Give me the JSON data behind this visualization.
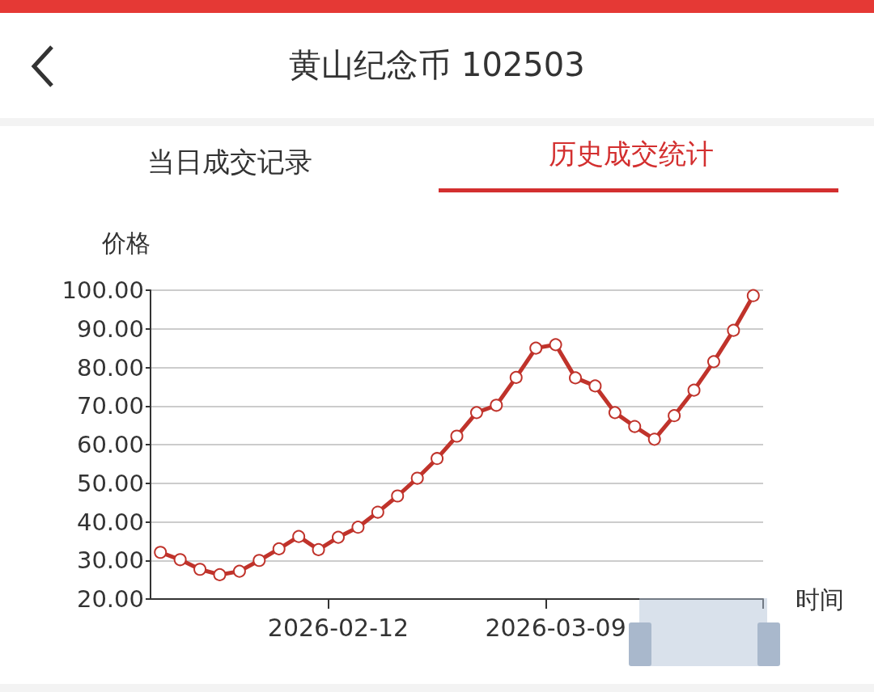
{
  "chart_data": {
    "type": "line",
    "title": "黄山纪念币 102503",
    "annotations": [
      "当日成交记录",
      "历史成交统计"
    ],
    "xlabel": "时间",
    "ylabel": "价格",
    "categories": [
      null,
      null,
      null,
      null,
      null,
      null,
      null,
      null,
      null,
      "2026-02-12",
      null,
      null,
      null,
      null,
      null,
      null,
      null,
      null,
      null,
      null,
      "2026-03-09",
      null,
      null,
      null,
      null,
      null,
      null,
      null,
      null,
      null,
      null
    ],
    "series": [
      {
        "color": "#c0332b",
        "values": [
          32.1,
          30.2,
          27.7,
          26.3,
          27.2,
          30.0,
          33.0,
          36.2,
          32.8,
          36.0,
          38.6,
          42.5,
          46.7,
          51.3,
          56.4,
          62.2,
          68.3,
          70.2,
          77.4,
          85.0,
          85.9,
          77.3,
          75.2,
          68.3,
          64.7,
          61.4,
          67.5,
          74.1,
          81.5,
          89.6,
          98.6
        ]
      }
    ],
    "ylim": [
      20,
      100
    ],
    "yticks": [
      {
        "value": 20,
        "label": "20.00"
      },
      {
        "value": 30,
        "label": "30.00"
      },
      {
        "value": 40,
        "label": "40.00"
      },
      {
        "value": 50,
        "label": "50.00"
      },
      {
        "value": 60,
        "label": "60.00"
      },
      {
        "value": 70,
        "label": "70.00"
      },
      {
        "value": 80,
        "label": "80.00"
      },
      {
        "value": 90,
        "label": "90.00"
      },
      {
        "value": 100,
        "label": "100.00"
      }
    ],
    "grid": "y",
    "marker": "circle",
    "line_style": "solid"
  }
}
